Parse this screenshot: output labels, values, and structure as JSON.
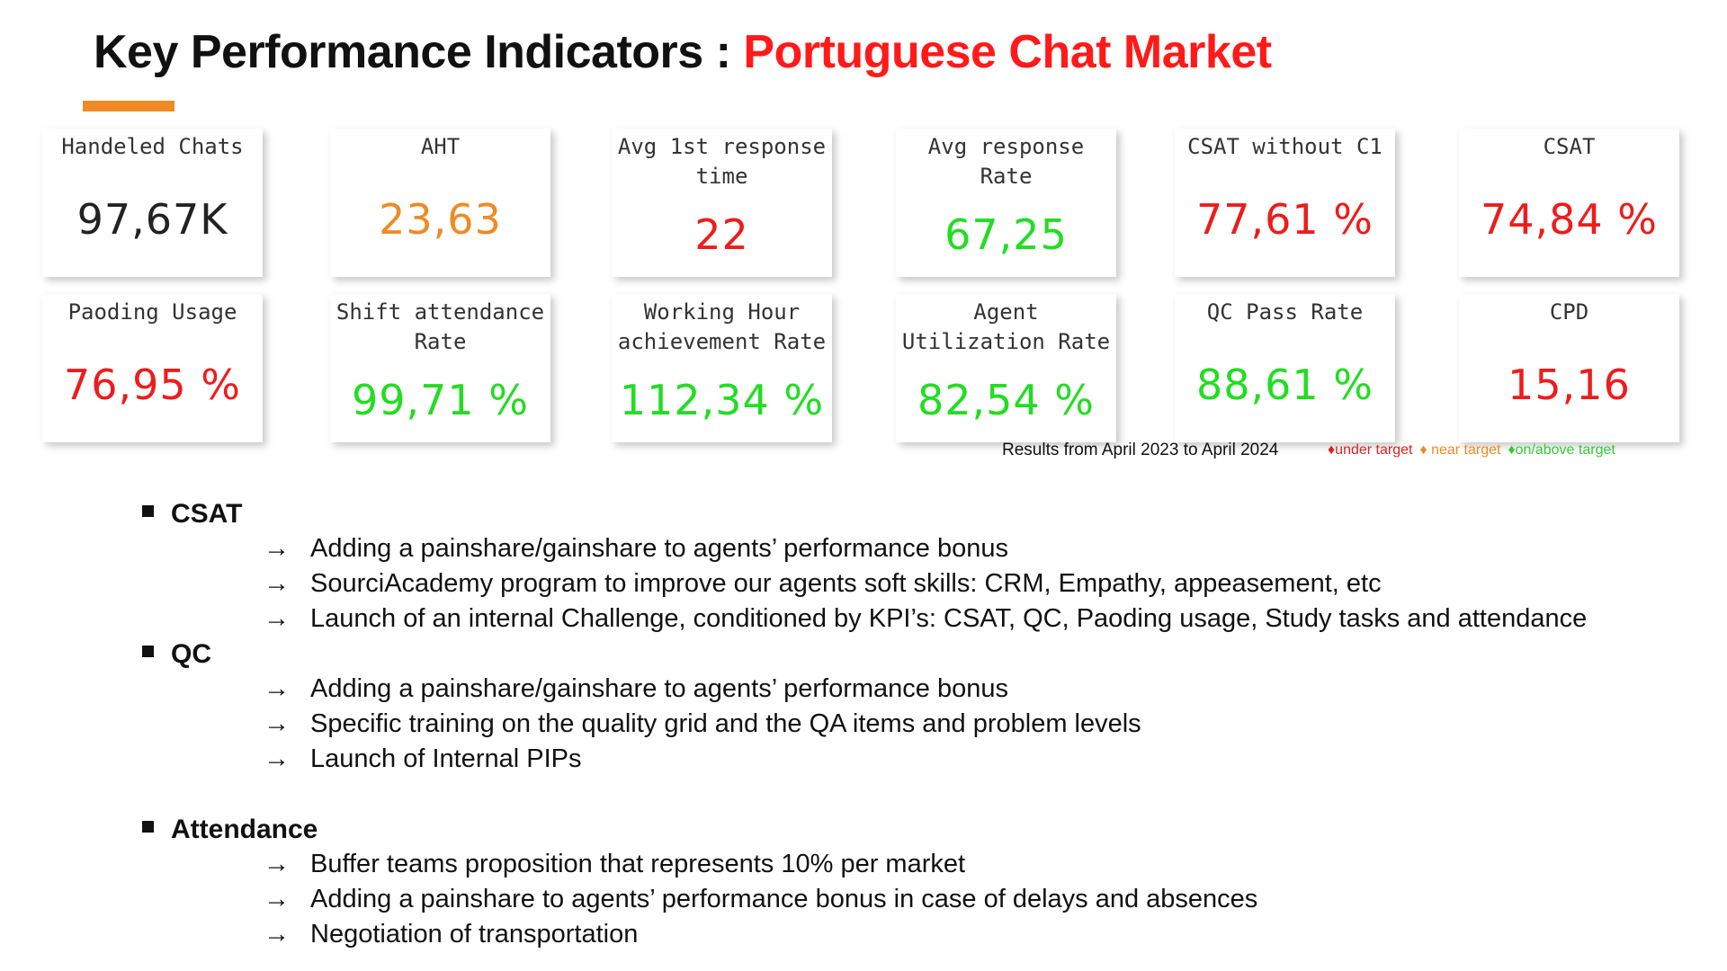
{
  "header": {
    "title": "Key Performance Indicators :",
    "title_highlight": "Portuguese Chat Market"
  },
  "kpis": [
    {
      "label": "Handeled Chats",
      "value": "97,67K",
      "color": "#222222"
    },
    {
      "label": "AHT",
      "value": "23,63",
      "color": "#f08a24"
    },
    {
      "label": "Avg 1st response time",
      "value": "22",
      "color": "#ee1c1c"
    },
    {
      "label": "Avg response Rate",
      "value": "67,25",
      "color": "#22dd22"
    },
    {
      "label": "CSAT without C1",
      "value": "77,61 %",
      "color": "#ee1c1c"
    },
    {
      "label": "CSAT",
      "value": "74,84 %",
      "color": "#ee1c1c"
    },
    {
      "label": "Paoding Usage",
      "value": "76,95 %",
      "color": "#ee1c1c"
    },
    {
      "label": "Shift attendance Rate",
      "value": "99,71 %",
      "color": "#22dd22"
    },
    {
      "label": "Working Hour achievement Rate",
      "value": "112,34 %",
      "color": "#22dd22"
    },
    {
      "label": "Agent Utilization Rate",
      "value": "82,54 %",
      "color": "#22dd22"
    },
    {
      "label": "QC Pass Rate",
      "value": "88,61 %",
      "color": "#22dd22"
    },
    {
      "label": "CPD",
      "value": "15,16",
      "color": "#ee1c1c"
    }
  ],
  "footnote": "Results from April 2023 to April 2024",
  "legend": [
    {
      "label": "♦under target",
      "color": "#e02020"
    },
    {
      "label": "♦ near target",
      "color": "#f08a24"
    },
    {
      "label": "♦on/above target",
      "color": "#33cc33"
    }
  ],
  "sections": [
    {
      "heading": "CSAT",
      "items": [
        "Adding a painshare/gainshare to agents’ performance bonus",
        "SourciAcademy program to improve our agents soft skills: CRM, Empathy, appeasement, etc",
        "Launch of an internal Challenge, conditioned by KPI’s: CSAT, QC, Paoding usage, Study tasks and attendance"
      ]
    },
    {
      "heading": "QC",
      "items": [
        "Adding a painshare/gainshare to agents’ performance bonus",
        "Specific training on the quality grid and the QA items and problem levels",
        "Launch of Internal PIPs"
      ]
    },
    {
      "heading": "Attendance",
      "items": [
        "Buffer teams proposition that represents 10% per market",
        "Adding a painshare to agents’ performance bonus in case of delays and absences",
        "Negotiation of transportation"
      ]
    }
  ]
}
